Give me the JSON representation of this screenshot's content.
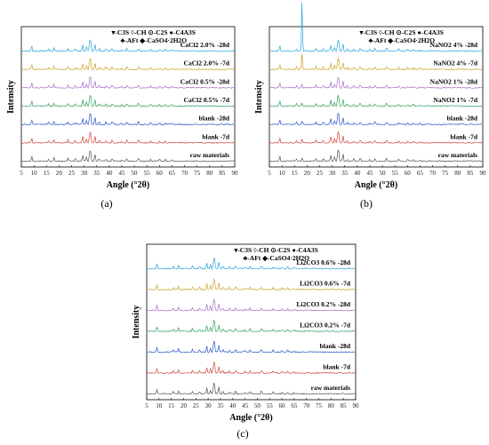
{
  "chart_data": [
    {
      "type": "line",
      "caption": "(a)",
      "xlabel": "Angle (°2θ)",
      "ylabel": "Intensity",
      "xlim": [
        5,
        90
      ],
      "x_ticks": [
        "5",
        "10",
        "15",
        "20",
        "25",
        "30",
        "35",
        "40",
        "45",
        "50",
        "55",
        "60",
        "65",
        "70",
        "75",
        "80",
        "85",
        "90"
      ],
      "legend_lines": [
        "▾-C3S ◊-CH ⊙-C2S ●-C4A3S",
        "♣-AFt ◆-CaSO4·2H2O"
      ],
      "series": [
        {
          "name": "CaCl2 2.0% -28d",
          "color": "#29a3d8"
        },
        {
          "name": "CaCl2 2.0% -7d",
          "color": "#c9a227"
        },
        {
          "name": "CaCl2 0.5% -28d",
          "color": "#a86bc8"
        },
        {
          "name": "CaCl2 0.5% -7d",
          "color": "#2e9e5e"
        },
        {
          "name": "blank -28d",
          "color": "#2753c8"
        },
        {
          "name": "blank -7d",
          "color": "#d0453a"
        },
        {
          "name": "raw materials",
          "color": "#555555"
        }
      ]
    },
    {
      "type": "line",
      "caption": "(b)",
      "xlabel": "Angle (°2θ)",
      "ylabel": "Intensity",
      "xlim": [
        5,
        90
      ],
      "x_ticks": [
        "5",
        "10",
        "15",
        "20",
        "25",
        "30",
        "35",
        "40",
        "45",
        "50",
        "55",
        "60",
        "65",
        "70",
        "75",
        "80",
        "85",
        "90"
      ],
      "legend_lines": [
        "▾-C3S ◊-CH ⊙-C2S ●-C4A3S",
        "♣-AFt ◆-CaSO4·2H2O"
      ],
      "series": [
        {
          "name": "NaNO2 4% -28d",
          "color": "#29a3d8"
        },
        {
          "name": "NaNO2 4% -7d",
          "color": "#c9a227"
        },
        {
          "name": "NaNO2 1% -28d",
          "color": "#a86bc8"
        },
        {
          "name": "NaNO2 1% -7d",
          "color": "#2e9e5e"
        },
        {
          "name": "blank -28d",
          "color": "#2753c8"
        },
        {
          "name": "blank -7d",
          "color": "#d0453a"
        },
        {
          "name": "raw materials",
          "color": "#555555"
        }
      ]
    },
    {
      "type": "line",
      "caption": "(c)",
      "xlabel": "Angle (°2θ)",
      "ylabel": "Intensity",
      "xlim": [
        5,
        90
      ],
      "x_ticks": [
        "5",
        "10",
        "15",
        "20",
        "25",
        "30",
        "35",
        "40",
        "45",
        "50",
        "55",
        "60",
        "65",
        "70",
        "75",
        "80",
        "85",
        "90"
      ],
      "legend_lines": [
        "▾-C3S ◊-CH ⊙-C2S ●-C4A3S",
        "♣-AFt ◆-CaSO4·2H2O"
      ],
      "series": [
        {
          "name": "Li2CO3 0.6% -28d",
          "color": "#29a3d8"
        },
        {
          "name": "Li2CO3 0.6% -7d",
          "color": "#c9a227"
        },
        {
          "name": "Li2CO3 0.2% -28d",
          "color": "#a86bc8"
        },
        {
          "name": "Li2CO3 0.2% -7d",
          "color": "#2e9e5e"
        },
        {
          "name": "blank -28d",
          "color": "#2753c8"
        },
        {
          "name": "blank -7d",
          "color": "#d0453a"
        },
        {
          "name": "raw materials",
          "color": "#555555"
        }
      ]
    }
  ]
}
